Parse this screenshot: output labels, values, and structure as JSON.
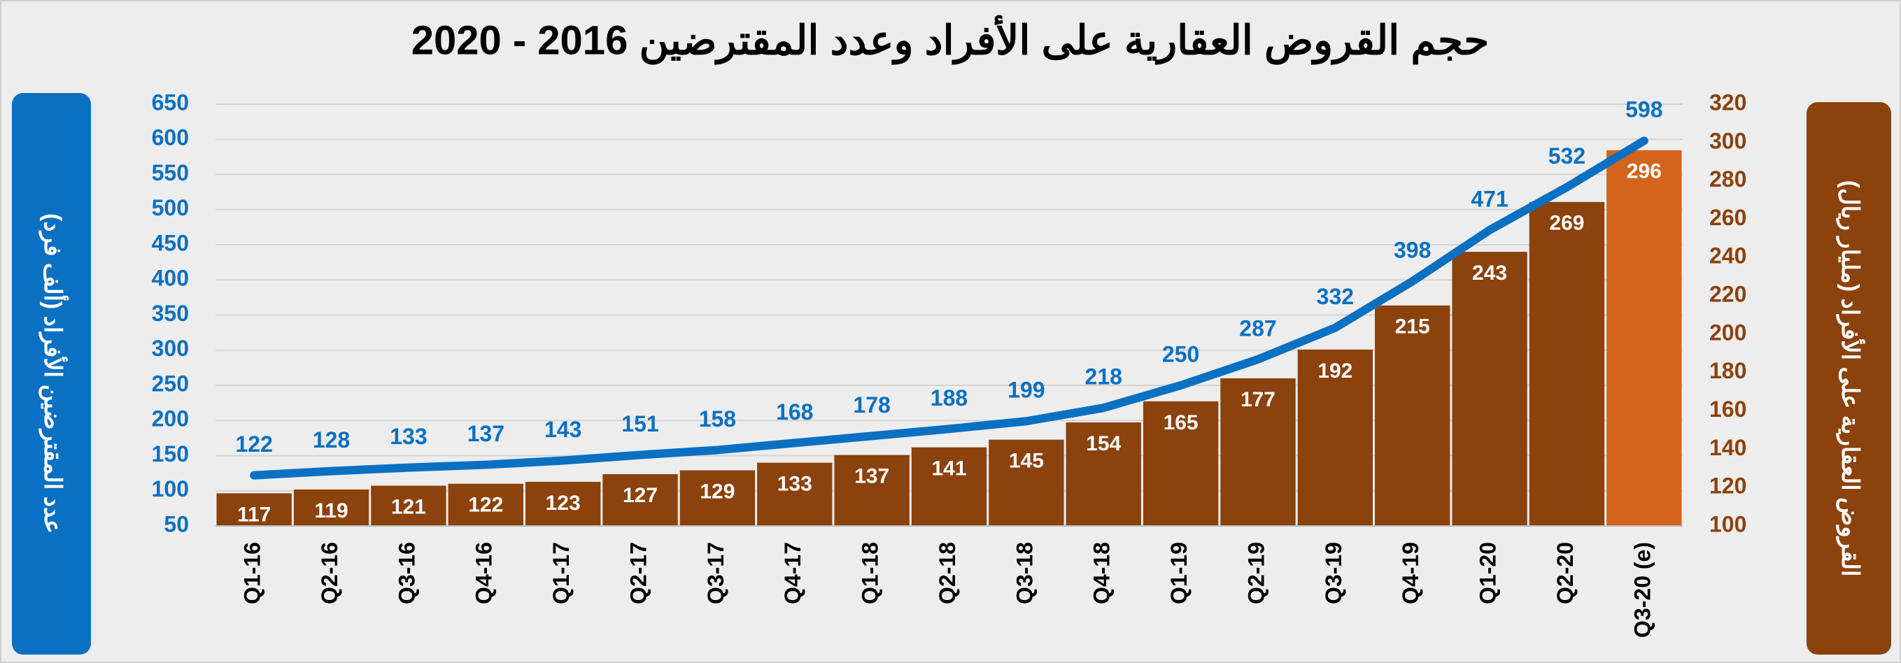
{
  "chart_data": {
    "type": "bar_line",
    "title": "حجم القروض العقارية على الأفراد وعدد المقترضين 2016 - 2020",
    "y_label": "عدد المقترضين الأفراد (ألف فرد)",
    "y2_label": "القروض العقارية على الأفراد (مليار ريال)",
    "categories": [
      "Q1-16",
      "Q2-16",
      "Q3-16",
      "Q4-16",
      "Q1-17",
      "Q2-17",
      "Q3-17",
      "Q4-17",
      "Q1-18",
      "Q2-18",
      "Q3-18",
      "Q4-18",
      "Q1-19",
      "Q2-19",
      "Q3-19",
      "Q4-19",
      "Q1-20",
      "Q2-20",
      "Q3-20 (e)"
    ],
    "series": [
      {
        "type": "bar",
        "axis": "y2",
        "color": "#8b420d",
        "colors": [
          "#8b420d",
          "#8b420d",
          "#8b420d",
          "#8b420d",
          "#8b420d",
          "#8b420d",
          "#8b420d",
          "#8b420d",
          "#8b420d",
          "#8b420d",
          "#8b420d",
          "#8b420d",
          "#8b420d",
          "#8b420d",
          "#8b420d",
          "#8b420d",
          "#8b420d",
          "#8b420d",
          "#d4631b"
        ],
        "values": [
          117,
          119,
          121,
          122,
          123,
          127,
          129,
          133,
          137,
          141,
          145,
          154,
          165,
          177,
          192,
          215,
          243,
          269,
          296
        ]
      },
      {
        "type": "line",
        "axis": "y",
        "color": "#0a70c2",
        "values": [
          122,
          128,
          133,
          137,
          143,
          151,
          158,
          168,
          178,
          188,
          199,
          218,
          250,
          287,
          332,
          398,
          471,
          532,
          598
        ]
      }
    ],
    "ylim": [
      50,
      650
    ],
    "yticks": [
      50,
      100,
      150,
      200,
      250,
      300,
      350,
      400,
      450,
      500,
      550,
      600,
      650
    ],
    "y2lim": [
      100,
      320
    ],
    "y2ticks": [
      100,
      120,
      140,
      160,
      180,
      200,
      220,
      240,
      260,
      280,
      300,
      320
    ],
    "grid": true
  }
}
